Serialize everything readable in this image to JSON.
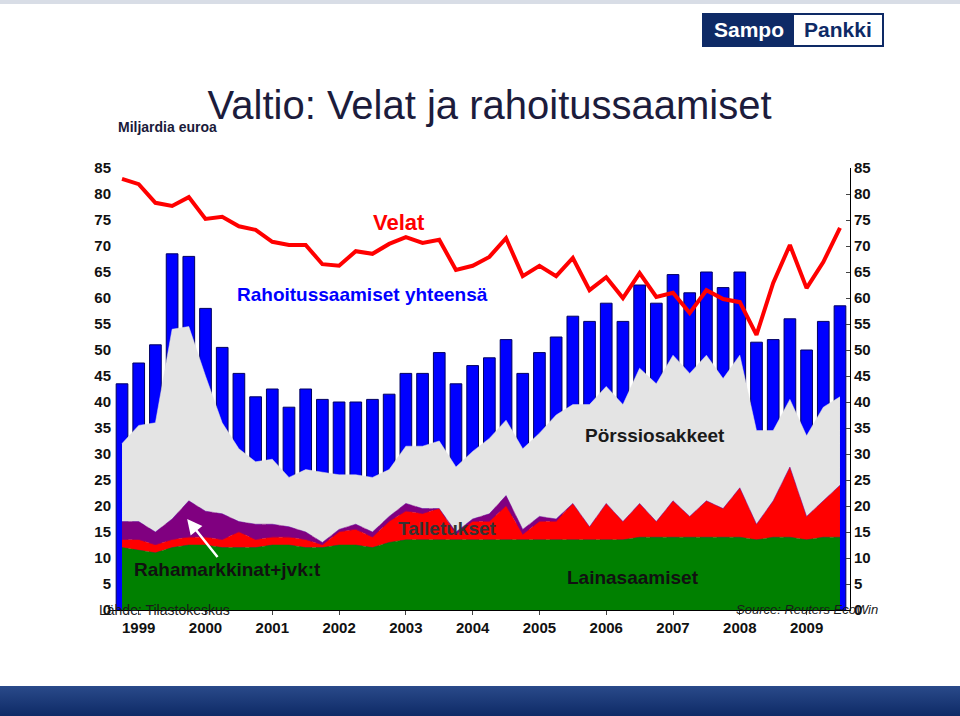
{
  "chart_data": {
    "type": "combo",
    "title": "Valtio: Velat ja rahoitussaamiset",
    "ylabel": "Miljardia euroa",
    "annotations": [
      "Lähde: Tilastokeskus",
      "Source: Reuters EcoWin"
    ],
    "stacked": true,
    "grid": false,
    "categories": [
      null,
      "1999",
      null,
      null,
      null,
      "2000",
      null,
      null,
      null,
      "2001",
      null,
      null,
      null,
      "2002",
      null,
      null,
      null,
      "2003",
      null,
      null,
      null,
      "2004",
      null,
      null,
      null,
      "2005",
      null,
      null,
      null,
      "2006",
      null,
      null,
      null,
      "2007",
      null,
      null,
      null,
      "2008",
      null,
      null,
      null,
      "2009",
      null,
      null
    ],
    "series": [
      {
        "name": "Rahoitussaamiset yhteensä",
        "type": "bar",
        "color": "#0000ff",
        "values": [
          43.5,
          47.5,
          51,
          68.5,
          68,
          58,
          50.5,
          45.5,
          41,
          42.5,
          39,
          42.5,
          40.5,
          40,
          40,
          40.5,
          41.5,
          45.5,
          45.5,
          49.5,
          43.5,
          47,
          48.5,
          52,
          45.5,
          49.5,
          52.5,
          56.5,
          55.5,
          59,
          55.5,
          62.5,
          59,
          64.5,
          61,
          65,
          62,
          65,
          51.5,
          52,
          56,
          50,
          55.5,
          58.5
        ]
      },
      {
        "name": "Lainasaamiset",
        "type": "area",
        "color": "#008000",
        "values": [
          12,
          11.5,
          11,
          12,
          12.5,
          12.5,
          12,
          12,
          12,
          12.5,
          12.5,
          12,
          12,
          12.5,
          12.5,
          12,
          13,
          13.5,
          13.5,
          13.5,
          13.5,
          13.5,
          13.5,
          13.5,
          13.5,
          13.5,
          13.5,
          13.5,
          13.5,
          13.5,
          13.5,
          14,
          14,
          14,
          14,
          14,
          14,
          14,
          13.5,
          14,
          14,
          13.5,
          14,
          14
        ]
      },
      {
        "name": "Talletukset",
        "type": "area",
        "color": "#ff0000",
        "values": [
          1.5,
          2,
          1.5,
          1.5,
          1.5,
          1.5,
          1.5,
          3,
          1.5,
          1.5,
          1.5,
          1.5,
          0.5,
          2.5,
          3,
          2,
          4,
          5.5,
          5,
          6,
          1,
          3.5,
          3.5,
          6.5,
          1,
          3.5,
          3.5,
          7,
          2.5,
          7,
          3.5,
          6.5,
          3,
          7,
          4,
          7,
          5.5,
          9.5,
          3,
          7,
          13.5,
          4.5,
          7,
          10
        ]
      },
      {
        "name": "Rahamarkkinat+jvk:t",
        "type": "area",
        "color": "#800080",
        "values": [
          3.5,
          3.5,
          2.5,
          4,
          7,
          5,
          5,
          2,
          3,
          2.5,
          2,
          1.5,
          0.5,
          0.5,
          1,
          1,
          1,
          1.5,
          1,
          0,
          0.5,
          0.5,
          1.5,
          2,
          1,
          1,
          0.5,
          0,
          0,
          0,
          0,
          0,
          0,
          0,
          0,
          0,
          0,
          0,
          0,
          0,
          0,
          0,
          0,
          0
        ]
      },
      {
        "name": "Pörssiosakkeet",
        "type": "area",
        "color": "#e4e4e4",
        "values": [
          15,
          18.5,
          21,
          36.5,
          33.5,
          26,
          17.5,
          14,
          12,
          12.5,
          9.5,
          12,
          13.5,
          10.5,
          9.5,
          10.5,
          9,
          11,
          12,
          13,
          12.5,
          13,
          14.5,
          14.5,
          15.5,
          16,
          20,
          19,
          23.5,
          22.5,
          22.5,
          26,
          26.5,
          28,
          27.5,
          28,
          25,
          25.5,
          18,
          13.5,
          13,
          15.5,
          18,
          17
        ]
      },
      {
        "name": "Velat",
        "type": "line",
        "color": "#ff0000",
        "values": [
          82.9,
          81.9,
          78.3,
          77.7,
          79.4,
          75.2,
          75.6,
          73.8,
          73.1,
          70.8,
          70.2,
          70.2,
          66.5,
          66.2,
          69,
          68.5,
          70.4,
          71.7,
          70.6,
          71.2,
          65.4,
          66.2,
          67.9,
          71.5,
          64.2,
          66.2,
          64.2,
          67.7,
          61.5,
          64,
          60,
          64.8,
          60.2,
          61,
          57.1,
          61.5,
          59.8,
          59.2,
          52.9,
          62.9,
          70.2,
          61.9,
          66.9,
          73.5
        ]
      }
    ],
    "ylim": [
      0,
      85
    ],
    "yticks": [
      0,
      5,
      10,
      15,
      20,
      25,
      30,
      35,
      40,
      45,
      50,
      55,
      60,
      65,
      70,
      75,
      80,
      85
    ],
    "y2lim": [
      0,
      85
    ],
    "y2ticks": [
      0,
      5,
      10,
      15,
      20,
      25,
      30,
      35,
      40,
      45,
      50,
      55,
      60,
      65,
      70,
      75,
      80,
      85
    ]
  },
  "logo": {
    "text": [
      "Sampo",
      "Pankki"
    ]
  }
}
